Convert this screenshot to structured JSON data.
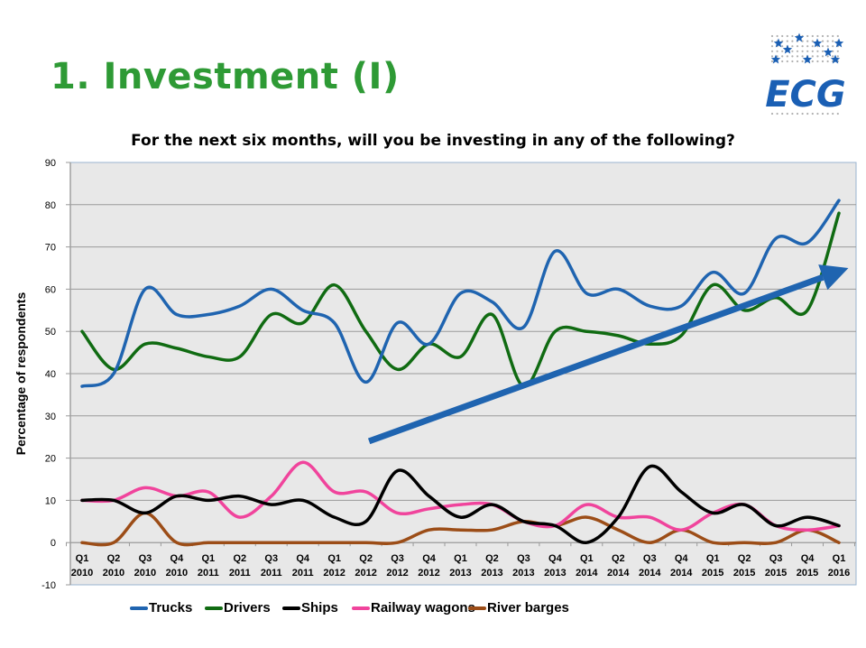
{
  "slide": {
    "title": "1. Investment (I)",
    "logo_text": "ECG",
    "brand_color": "#2e9a35",
    "logo_color": "#1a5fb4"
  },
  "chart_data": {
    "type": "line",
    "title": "For the next six months, will you be investing in any of the following?",
    "xlabel": "",
    "ylabel": "Percentage of respondents",
    "ylim": [
      -10,
      90
    ],
    "yticks": [
      -10,
      0,
      10,
      20,
      30,
      40,
      50,
      60,
      70,
      80,
      90
    ],
    "grid": true,
    "smooth": true,
    "legend_position": "bottom",
    "categories": [
      [
        "Q1",
        "2010"
      ],
      [
        "Q2",
        "2010"
      ],
      [
        "Q3",
        "2010"
      ],
      [
        "Q4",
        "2010"
      ],
      [
        "Q1",
        "2011"
      ],
      [
        "Q2",
        "2011"
      ],
      [
        "Q3",
        "2011"
      ],
      [
        "Q4",
        "2011"
      ],
      [
        "Q1",
        "2012"
      ],
      [
        "Q2",
        "2012"
      ],
      [
        "Q3",
        "2012"
      ],
      [
        "Q4",
        "2012"
      ],
      [
        "Q1",
        "2013"
      ],
      [
        "Q2",
        "2013"
      ],
      [
        "Q3",
        "2013"
      ],
      [
        "Q4",
        "2013"
      ],
      [
        "Q1",
        "2014"
      ],
      [
        "Q2",
        "2014"
      ],
      [
        "Q3",
        "2014"
      ],
      [
        "Q4",
        "2014"
      ],
      [
        "Q1",
        "2015"
      ],
      [
        "Q2",
        "2015"
      ],
      [
        "Q3",
        "2015"
      ],
      [
        "Q4",
        "2015"
      ],
      [
        "Q1",
        "2016"
      ]
    ],
    "series": [
      {
        "name": "Trucks",
        "color": "#1f64b0",
        "values": [
          37,
          40,
          60,
          54,
          54,
          56,
          60,
          55,
          52,
          38,
          52,
          47,
          59,
          57,
          51,
          69,
          59,
          60,
          56,
          56,
          64,
          59,
          72,
          71,
          81
        ]
      },
      {
        "name": "Drivers",
        "color": "#106b12",
        "values": [
          50,
          41,
          47,
          46,
          44,
          44,
          54,
          52,
          61,
          50,
          41,
          47,
          44,
          54,
          37,
          50,
          50,
          49,
          47,
          49,
          61,
          55,
          58,
          55,
          78
        ]
      },
      {
        "name": "Ships",
        "color": "#000000",
        "values": [
          10,
          10,
          7,
          11,
          10,
          11,
          9,
          10,
          6,
          5,
          17,
          11,
          6,
          9,
          5,
          4,
          0,
          6,
          18,
          12,
          7,
          9,
          4,
          6,
          4
        ]
      },
      {
        "name": "Railway wagons",
        "color": "#f0449c",
        "values": [
          10,
          10,
          13,
          11,
          12,
          6,
          11,
          19,
          12,
          12,
          7,
          8,
          9,
          9,
          5,
          4,
          9,
          6,
          6,
          3,
          7,
          9,
          4,
          3,
          4
        ]
      },
      {
        "name": "River barges",
        "color": "#9c4d17",
        "values": [
          0,
          0,
          7,
          0,
          0,
          0,
          0,
          0,
          0,
          0,
          0,
          3,
          3,
          3,
          5,
          4,
          6,
          3,
          0,
          3,
          0,
          0,
          0,
          3,
          0
        ]
      }
    ],
    "annotations": [
      {
        "type": "trend-arrow",
        "color": "#1f64b0",
        "from": {
          "category_index": 9.1,
          "value": 24
        },
        "to": {
          "category_index": 24.3,
          "value": 65
        }
      }
    ]
  }
}
